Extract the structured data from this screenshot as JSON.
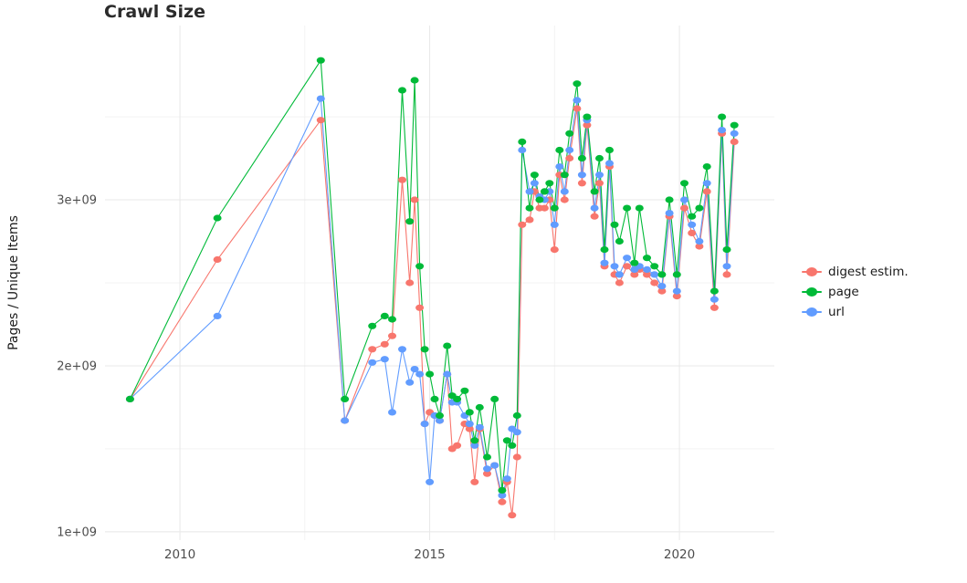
{
  "title": "Crawl Size",
  "axes": {
    "y_label": "Pages / Unique Items",
    "x_label": "",
    "x_ticks": [
      {
        "value": 2010,
        "label": "2010"
      },
      {
        "value": 2015,
        "label": "2015"
      },
      {
        "value": 2020,
        "label": "2020"
      }
    ],
    "y_ticks": [
      {
        "value": 1,
        "label": "1e+09"
      },
      {
        "value": 2,
        "label": "2e+09"
      },
      {
        "value": 3,
        "label": "3e+09"
      }
    ],
    "x_minor": [
      2012.5,
      2017.5
    ],
    "y_minor": [
      1.5,
      2.5,
      3.5
    ],
    "x_range": [
      2008.5,
      2021.9
    ],
    "y_range": [
      0.95,
      4.05
    ]
  },
  "legend": {
    "position": "right",
    "items": [
      "digest estim.",
      "page",
      "url"
    ]
  },
  "chart_data": {
    "type": "line",
    "title": "Crawl Size",
    "xlabel": "",
    "ylabel": "Pages / Unique Items",
    "y_value_unit": "items, in units of 1e9 (billions), read from axis",
    "x_unit": "year (decimal)",
    "grid": true,
    "legend_position": "right",
    "marker": "point+line",
    "xlim": [
      2008.5,
      2021.9
    ],
    "ylim_raw": [
      950000000,
      4050000000
    ],
    "x": [
      2009.0,
      2010.75,
      2012.82,
      2013.3,
      2013.85,
      2014.1,
      2014.25,
      2014.45,
      2014.6,
      2014.7,
      2014.8,
      2014.9,
      2015.0,
      2015.1,
      2015.2,
      2015.35,
      2015.45,
      2015.55,
      2015.7,
      2015.8,
      2015.9,
      2016.0,
      2016.15,
      2016.3,
      2016.45,
      2016.55,
      2016.65,
      2016.75,
      2016.85,
      2017.0,
      2017.1,
      2017.2,
      2017.3,
      2017.4,
      2017.5,
      2017.6,
      2017.7,
      2017.8,
      2017.95,
      2018.05,
      2018.15,
      2018.3,
      2018.4,
      2018.5,
      2018.6,
      2018.7,
      2018.8,
      2018.95,
      2019.1,
      2019.2,
      2019.35,
      2019.5,
      2019.65,
      2019.8,
      2019.95,
      2020.1,
      2020.25,
      2020.4,
      2020.55,
      2020.7,
      2020.85,
      2020.95,
      2021.1
    ],
    "series": [
      {
        "name": "digest estim.",
        "color": "#F8766D",
        "values": [
          1.8,
          2.64,
          3.48,
          1.67,
          2.1,
          2.13,
          2.18,
          3.12,
          2.5,
          3.0,
          2.35,
          1.65,
          1.72,
          1.7,
          1.67,
          1.95,
          1.5,
          1.52,
          1.65,
          1.62,
          1.3,
          1.62,
          1.35,
          1.4,
          1.18,
          1.3,
          1.1,
          1.45,
          2.85,
          2.88,
          3.05,
          2.95,
          2.95,
          3.0,
          2.7,
          3.15,
          3.0,
          3.25,
          3.55,
          3.1,
          3.45,
          2.9,
          3.1,
          2.6,
          3.2,
          2.55,
          2.5,
          2.6,
          2.55,
          2.58,
          2.55,
          2.5,
          2.45,
          2.9,
          2.42,
          2.95,
          2.8,
          2.72,
          3.05,
          2.35,
          3.4,
          2.55,
          3.35
        ]
      },
      {
        "name": "page",
        "color": "#00BA38",
        "values": [
          1.8,
          2.89,
          3.84,
          1.8,
          2.24,
          2.3,
          2.28,
          3.66,
          2.87,
          3.72,
          2.6,
          2.1,
          1.95,
          1.8,
          1.7,
          2.12,
          1.82,
          1.8,
          1.85,
          1.72,
          1.55,
          1.75,
          1.45,
          1.8,
          1.25,
          1.55,
          1.52,
          1.7,
          3.35,
          2.95,
          3.15,
          3.0,
          3.05,
          3.1,
          2.95,
          3.3,
          3.15,
          3.4,
          3.7,
          3.25,
          3.5,
          3.05,
          3.25,
          2.7,
          3.3,
          2.85,
          2.75,
          2.95,
          2.62,
          2.95,
          2.65,
          2.6,
          2.55,
          3.0,
          2.55,
          3.1,
          2.9,
          2.95,
          3.2,
          2.45,
          3.5,
          2.7,
          3.45
        ]
      },
      {
        "name": "url",
        "color": "#619CFF",
        "values": [
          1.8,
          2.3,
          3.61,
          1.67,
          2.02,
          2.04,
          1.72,
          2.1,
          1.9,
          1.98,
          1.95,
          1.65,
          1.3,
          1.7,
          1.67,
          1.95,
          1.78,
          1.78,
          1.7,
          1.65,
          1.52,
          1.63,
          1.38,
          1.4,
          1.22,
          1.32,
          1.62,
          1.6,
          3.3,
          3.05,
          3.1,
          3.02,
          3.0,
          3.05,
          2.85,
          3.2,
          3.05,
          3.3,
          3.6,
          3.15,
          3.48,
          2.95,
          3.15,
          2.62,
          3.22,
          2.6,
          2.55,
          2.65,
          2.58,
          2.6,
          2.58,
          2.55,
          2.48,
          2.92,
          2.45,
          3.0,
          2.85,
          2.75,
          3.1,
          2.4,
          3.42,
          2.6,
          3.4
        ]
      }
    ],
    "colors": {
      "digest_estim": "#F8766D",
      "page": "#00BA38",
      "url": "#619CFF",
      "grid_major": "#e8e8e8",
      "grid_minor": "#f3f3f3",
      "tick_label": "#4d4d4d"
    }
  }
}
